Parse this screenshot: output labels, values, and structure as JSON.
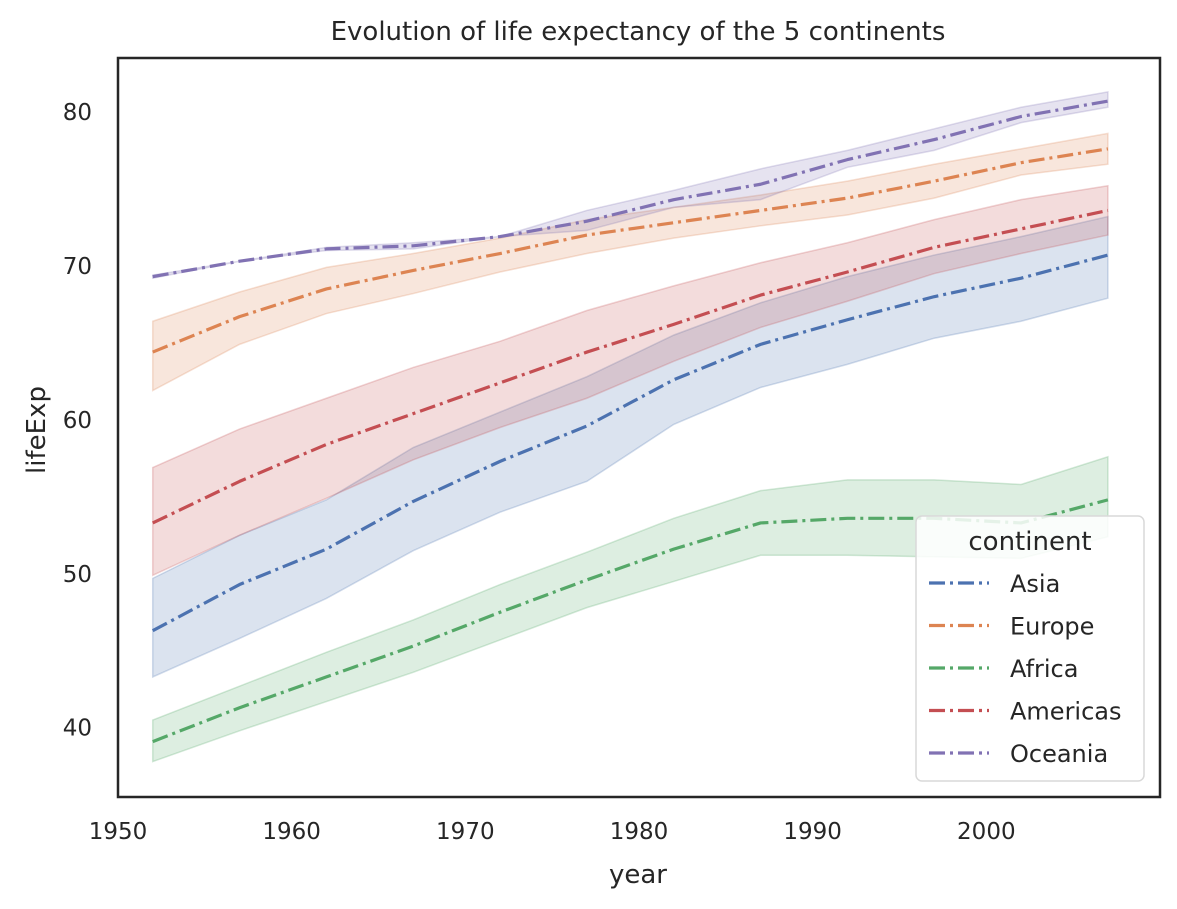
{
  "chart_data": {
    "type": "line",
    "title": "Evolution of life expectancy of the 5 continents",
    "xlabel": "year",
    "ylabel": "lifeExp",
    "xlim": [
      1950,
      2010
    ],
    "ylim": [
      35.5,
      83.5
    ],
    "xticks": [
      1950,
      1960,
      1970,
      1980,
      1990,
      2000
    ],
    "yticks": [
      40,
      50,
      60,
      70,
      80
    ],
    "grid": false,
    "legend": {
      "title": "continent",
      "position": "lower-right"
    },
    "x": [
      1952,
      1957,
      1962,
      1967,
      1972,
      1977,
      1982,
      1987,
      1992,
      1997,
      2002,
      2007
    ],
    "series": [
      {
        "name": "Asia",
        "color": "#4c72b0",
        "values": [
          46.3,
          49.3,
          51.6,
          54.7,
          57.3,
          59.6,
          62.6,
          64.9,
          66.5,
          68.0,
          69.2,
          70.7
        ],
        "ci_low": [
          43.3,
          45.8,
          48.4,
          51.5,
          54.0,
          56.0,
          59.7,
          62.1,
          63.6,
          65.3,
          66.4,
          67.9
        ],
        "ci_high": [
          49.7,
          52.5,
          54.8,
          58.2,
          60.5,
          62.8,
          65.5,
          67.6,
          69.3,
          70.7,
          71.9,
          73.2
        ]
      },
      {
        "name": "Europe",
        "color": "#dd8452",
        "values": [
          64.4,
          66.7,
          68.5,
          69.7,
          70.8,
          72.0,
          72.8,
          73.6,
          74.4,
          75.5,
          76.7,
          77.6
        ],
        "ci_low": [
          61.9,
          64.9,
          66.9,
          68.2,
          69.6,
          70.8,
          71.8,
          72.6,
          73.3,
          74.4,
          75.9,
          76.6
        ],
        "ci_high": [
          66.4,
          68.3,
          69.9,
          70.8,
          71.8,
          73.0,
          73.8,
          74.6,
          75.5,
          76.6,
          77.6,
          78.6
        ]
      },
      {
        "name": "Africa",
        "color": "#55a868",
        "values": [
          39.1,
          41.3,
          43.3,
          45.3,
          47.5,
          49.6,
          51.6,
          53.3,
          53.6,
          53.6,
          53.3,
          54.8
        ],
        "ci_low": [
          37.8,
          39.8,
          41.7,
          43.6,
          45.7,
          47.8,
          49.5,
          51.2,
          51.2,
          51.1,
          51.0,
          52.4
        ],
        "ci_high": [
          40.5,
          42.7,
          44.9,
          47.0,
          49.3,
          51.4,
          53.6,
          55.4,
          56.1,
          56.1,
          55.8,
          57.6
        ]
      },
      {
        "name": "Americas",
        "color": "#c44e52",
        "values": [
          53.3,
          56.0,
          58.4,
          60.4,
          62.4,
          64.4,
          66.2,
          68.1,
          69.6,
          71.2,
          72.4,
          73.6
        ],
        "ci_low": [
          49.9,
          52.5,
          54.9,
          57.4,
          59.5,
          61.4,
          63.8,
          66.0,
          67.7,
          69.5,
          70.8,
          72.0
        ],
        "ci_high": [
          56.9,
          59.4,
          61.4,
          63.4,
          65.1,
          67.1,
          68.7,
          70.2,
          71.5,
          73.0,
          74.3,
          75.2
        ]
      },
      {
        "name": "Oceania",
        "color": "#8172b3",
        "values": [
          69.3,
          70.3,
          71.1,
          71.3,
          71.9,
          72.9,
          74.3,
          75.3,
          76.9,
          78.2,
          79.7,
          80.7
        ],
        "ci_low": [
          69.2,
          70.3,
          71.0,
          71.1,
          71.9,
          72.3,
          73.8,
          74.3,
          76.4,
          77.5,
          79.3,
          80.3
        ],
        "ci_high": [
          69.4,
          70.3,
          71.2,
          71.5,
          71.9,
          73.6,
          74.9,
          76.3,
          77.5,
          78.9,
          80.3,
          81.3
        ]
      }
    ]
  }
}
